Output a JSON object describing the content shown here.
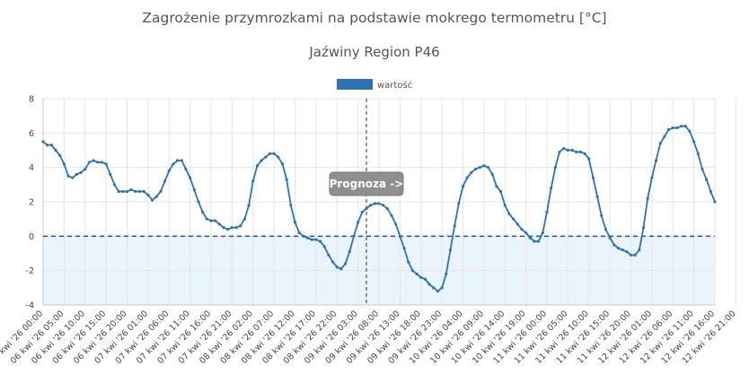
{
  "chart_data": {
    "type": "line",
    "title": "Zagrożenie przymrozkami na podstawie mokrego termometru [°C]",
    "subtitle": "Jaźwiny Region P46",
    "legend": {
      "label": "wartość",
      "position": "top"
    },
    "series": [
      {
        "name": "wartość",
        "values": [
          5.5,
          5.3,
          5.3,
          5.0,
          4.7,
          4.2,
          3.5,
          3.4,
          3.6,
          3.7,
          3.9,
          4.3,
          4.4,
          4.3,
          4.3,
          4.2,
          3.6,
          3.0,
          2.6,
          2.6,
          2.6,
          2.7,
          2.6,
          2.6,
          2.6,
          2.4,
          2.1,
          2.3,
          2.6,
          3.2,
          3.8,
          4.2,
          4.4,
          4.4,
          3.9,
          3.4,
          2.7,
          2.0,
          1.4,
          1.0,
          0.9,
          0.9,
          0.7,
          0.5,
          0.4,
          0.5,
          0.5,
          0.6,
          1.0,
          1.8,
          3.2,
          4.1,
          4.4,
          4.6,
          4.8,
          4.8,
          4.6,
          4.2,
          3.3,
          1.8,
          0.8,
          0.2,
          0.0,
          -0.1,
          -0.2,
          -0.2,
          -0.3,
          -0.6,
          -1.1,
          -1.5,
          -1.8,
          -1.9,
          -1.6,
          -0.9,
          0.0,
          0.8,
          1.4,
          1.6,
          1.8,
          1.9,
          1.9,
          1.8,
          1.6,
          1.2,
          0.7,
          0.0,
          -0.7,
          -1.5,
          -2.0,
          -2.2,
          -2.4,
          -2.5,
          -2.8,
          -3.0,
          -3.2,
          -3.0,
          -2.2,
          -0.8,
          0.6,
          1.9,
          2.9,
          3.4,
          3.7,
          3.9,
          4.0,
          4.1,
          4.0,
          3.6,
          2.9,
          2.6,
          1.8,
          1.3,
          1.0,
          0.7,
          0.4,
          0.2,
          -0.1,
          -0.3,
          -0.3,
          0.2,
          1.4,
          2.8,
          4.0,
          4.9,
          5.1,
          5.0,
          5.0,
          4.9,
          4.9,
          4.8,
          4.5,
          3.4,
          2.3,
          1.2,
          0.4,
          -0.1,
          -0.5,
          -0.7,
          -0.8,
          -0.9,
          -1.1,
          -1.1,
          -0.8,
          0.5,
          2.2,
          3.4,
          4.4,
          5.4,
          5.8,
          6.2,
          6.3,
          6.3,
          6.4,
          6.4,
          6.1,
          5.5,
          4.8,
          3.9,
          3.3,
          2.6,
          2.0
        ]
      }
    ],
    "x_tick_labels": [
      "06 kwi '26 00:00",
      "06 kwi '26 05:00",
      "06 kwi '26 10:00",
      "06 kwi '26 15:00",
      "06 kwi '26 20:00",
      "07 kwi '26 01:00",
      "07 kwi '26 06:00",
      "07 kwi '26 11:00",
      "07 kwi '26 16:00",
      "07 kwi '26 21:00",
      "08 kwi '26 02:00",
      "08 kwi '26 07:00",
      "08 kwi '26 12:00",
      "08 kwi '26 17:00",
      "08 kwi '26 22:00",
      "09 kwi '26 03:00",
      "09 kwi '26 08:00",
      "09 kwi '26 13:00",
      "09 kwi '26 18:00",
      "09 kwi '26 23:00",
      "10 kwi '26 04:00",
      "10 kwi '26 09:00",
      "10 kwi '26 14:00",
      "10 kwi '26 19:00",
      "11 kwi '26 00:00",
      "11 kwi '26 05:00",
      "11 kwi '26 10:00",
      "11 kwi '26 15:00",
      "11 kwi '26 20:00",
      "12 kwi '26 01:00",
      "12 kwi '26 06:00",
      "12 kwi '26 11:00",
      "12 kwi '26 16:00",
      "12 kwi '26 21:00"
    ],
    "x_tick_every_n_points": 5,
    "y_ticks": [
      8,
      6,
      4,
      2,
      0,
      -2,
      -4
    ],
    "ylim": [
      -4,
      8
    ],
    "grid": true,
    "reference_line": {
      "y": 0,
      "style": "dashed",
      "color": "#1f4e9c",
      "fill_below": "#eaf4fd"
    },
    "forecast_marker": {
      "label": "Prognoza ->",
      "at_point_index": 77,
      "style": "dashed",
      "color": "#333333"
    },
    "colors": {
      "series": "#2e73b0",
      "legend_swatch": "#2e73b0",
      "badge": "#8f8f8f"
    }
  }
}
